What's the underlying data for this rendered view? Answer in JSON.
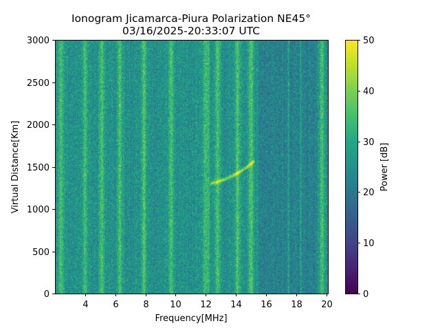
{
  "chart_data": {
    "type": "heatmap",
    "title_line1": "Ionogram Jicamarca-Piura Polarization NE45°",
    "title_line2": "03/16/2025-20:33:07 UTC",
    "xlabel": "Frequency[MHz]",
    "ylabel": "Virtual Distance[Km]",
    "xlim": [
      2.0,
      20.1
    ],
    "ylim": [
      0,
      3000
    ],
    "xticks": [
      4,
      6,
      8,
      10,
      12,
      14,
      16,
      18,
      20
    ],
    "yticks": [
      0,
      500,
      1000,
      1500,
      2000,
      2500,
      3000
    ],
    "colorbar": {
      "label": "Power [dB]",
      "vmin": 0,
      "vmax": 50,
      "ticks": [
        0,
        10,
        20,
        30,
        40,
        50
      ],
      "colormap": "viridis"
    },
    "features": {
      "base_level_db": 25,
      "bright_bands_mhz": [
        2.4,
        4.0,
        5.1,
        6.3,
        7.9,
        9.7,
        12.0,
        12.8,
        14.1,
        15.0,
        19.7
      ],
      "thin_lines_mhz": [
        12.2,
        17.5,
        18.3
      ],
      "trace": {
        "start": [
          12.3,
          1300
        ],
        "end": [
          15.2,
          1560
        ],
        "peak_db": 42
      }
    }
  }
}
